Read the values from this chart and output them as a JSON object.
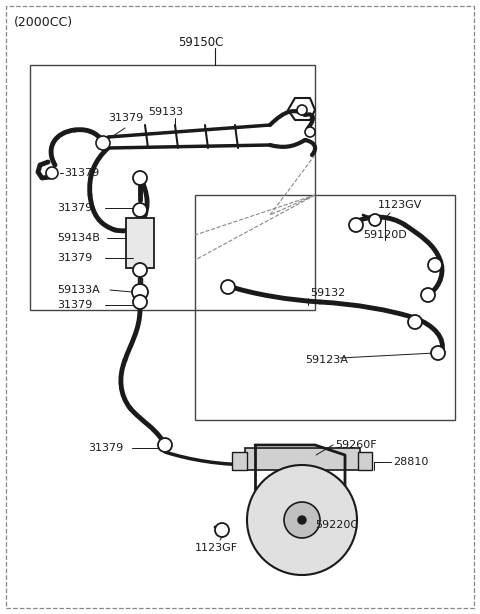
{
  "bg_color": "#ffffff",
  "line_color": "#1a1a1a",
  "fig_width": 4.8,
  "fig_height": 6.14,
  "dpi": 100,
  "title": "(2000CC)",
  "label_59150C": "59150C",
  "label_31379": "31379",
  "label_59133": "59133",
  "label_1123GV": "1123GV",
  "label_59120D": "59120D",
  "label_59134B": "59134B",
  "label_59133A": "59133A",
  "label_59132": "59132",
  "label_59123A": "59123A",
  "label_59260F": "59260F",
  "label_28810": "28810",
  "label_59220C": "59220C",
  "label_1123GF": "1123GF"
}
